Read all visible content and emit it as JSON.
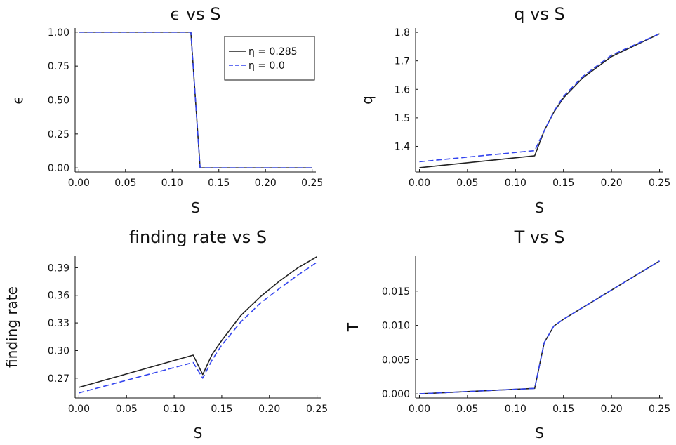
{
  "chart_data": [
    {
      "type": "line",
      "title": "ϵ vs S",
      "xlabel": "S",
      "ylabel": "ϵ",
      "xlim": [
        -0.004,
        0.254
      ],
      "ylim": [
        -0.03,
        1.03
      ],
      "xticks": [
        0,
        0.05,
        0.1,
        0.15,
        0.2,
        0.25
      ],
      "xtick_labels": [
        "0.00",
        "0.05",
        "0.10",
        "0.15",
        "0.20",
        "0.25"
      ],
      "yticks": [
        0,
        0.25,
        0.5,
        0.75,
        1.0
      ],
      "ytick_labels": [
        "0.00",
        "0.25",
        "0.50",
        "0.75",
        "1.00"
      ],
      "grid": false,
      "legend": "top-right",
      "series": [
        {
          "name": "η = 0.285",
          "color": "#222222",
          "style": "solid",
          "x": [
            0,
            0.12,
            0.13,
            0.25
          ],
          "y": [
            1.0,
            1.0,
            0.0,
            0.0
          ]
        },
        {
          "name": "η = 0.0",
          "color": "#3344ee",
          "style": "dashed",
          "x": [
            0,
            0.12,
            0.13,
            0.25
          ],
          "y": [
            1.0,
            1.0,
            0.0,
            0.0
          ]
        }
      ]
    },
    {
      "type": "line",
      "title": "q vs S",
      "xlabel": "S",
      "ylabel": "q",
      "xlim": [
        -0.004,
        0.254
      ],
      "ylim": [
        1.31,
        1.815
      ],
      "xticks": [
        0,
        0.05,
        0.1,
        0.15,
        0.2,
        0.25
      ],
      "xtick_labels": [
        "0.00",
        "0.05",
        "0.10",
        "0.15",
        "0.20",
        "0.25"
      ],
      "yticks": [
        1.4,
        1.5,
        1.6,
        1.7,
        1.8
      ],
      "ytick_labels": [
        "1.4",
        "1.5",
        "1.6",
        "1.7",
        "1.8"
      ],
      "grid": false,
      "series": [
        {
          "name": "η = 0.285",
          "color": "#222222",
          "style": "solid",
          "x": [
            0,
            0.12,
            0.13,
            0.14,
            0.15,
            0.17,
            0.2,
            0.25
          ],
          "y": [
            1.325,
            1.367,
            1.455,
            1.52,
            1.57,
            1.64,
            1.715,
            1.795
          ]
        },
        {
          "name": "η = 0.0",
          "color": "#3344ee",
          "style": "dashed",
          "x": [
            0,
            0.12,
            0.13,
            0.14,
            0.15,
            0.17,
            0.2,
            0.25
          ],
          "y": [
            1.346,
            1.385,
            1.455,
            1.522,
            1.575,
            1.645,
            1.72,
            1.795
          ]
        }
      ]
    },
    {
      "type": "line",
      "title": "finding rate vs S",
      "xlabel": "S",
      "ylabel": "finding rate",
      "xlim": [
        -0.004,
        0.254
      ],
      "ylim": [
        0.2485,
        0.4025
      ],
      "xticks": [
        0,
        0.05,
        0.1,
        0.15,
        0.2,
        0.25
      ],
      "xtick_labels": [
        "0.00",
        "0.05",
        "0.10",
        "0.15",
        "0.20",
        "0.25"
      ],
      "yticks": [
        0.27,
        0.3,
        0.33,
        0.36,
        0.39
      ],
      "ytick_labels": [
        "0.27",
        "0.30",
        "0.33",
        "0.36",
        "0.39"
      ],
      "grid": false,
      "series": [
        {
          "name": "η = 0.285",
          "color": "#222222",
          "style": "solid",
          "x": [
            0,
            0.12,
            0.13,
            0.14,
            0.15,
            0.17,
            0.19,
            0.21,
            0.23,
            0.25
          ],
          "y": [
            0.26,
            0.295,
            0.274,
            0.296,
            0.311,
            0.338,
            0.358,
            0.375,
            0.39,
            0.402
          ]
        },
        {
          "name": "η = 0.0",
          "color": "#3344ee",
          "style": "dashed",
          "x": [
            0,
            0.12,
            0.13,
            0.14,
            0.15,
            0.17,
            0.19,
            0.21,
            0.23,
            0.25
          ],
          "y": [
            0.254,
            0.287,
            0.27,
            0.29,
            0.306,
            0.331,
            0.351,
            0.367,
            0.382,
            0.396
          ]
        }
      ]
    },
    {
      "type": "line",
      "title": "T vs S",
      "xlabel": "S",
      "ylabel": "T",
      "xlim": [
        -0.004,
        0.254
      ],
      "ylim": [
        -0.0006,
        0.0201
      ],
      "xticks": [
        0,
        0.05,
        0.1,
        0.15,
        0.2,
        0.25
      ],
      "xtick_labels": [
        "0.00",
        "0.05",
        "0.10",
        "0.15",
        "0.20",
        "0.25"
      ],
      "yticks": [
        0,
        0.005,
        0.01,
        0.015
      ],
      "ytick_labels": [
        "0.000",
        "0.005",
        "0.010",
        "0.015"
      ],
      "grid": false,
      "series": [
        {
          "name": "η = 0.285",
          "color": "#222222",
          "style": "solid",
          "x": [
            0,
            0.12,
            0.13,
            0.14,
            0.15,
            0.25
          ],
          "y": [
            0.0,
            0.0008,
            0.0075,
            0.0099,
            0.0109,
            0.0194
          ]
        },
        {
          "name": "η = 0.0",
          "color": "#3344ee",
          "style": "dashed",
          "x": [
            0,
            0.12,
            0.13,
            0.14,
            0.15,
            0.25
          ],
          "y": [
            0.0,
            0.0008,
            0.0075,
            0.0099,
            0.0109,
            0.0194
          ]
        }
      ]
    }
  ]
}
